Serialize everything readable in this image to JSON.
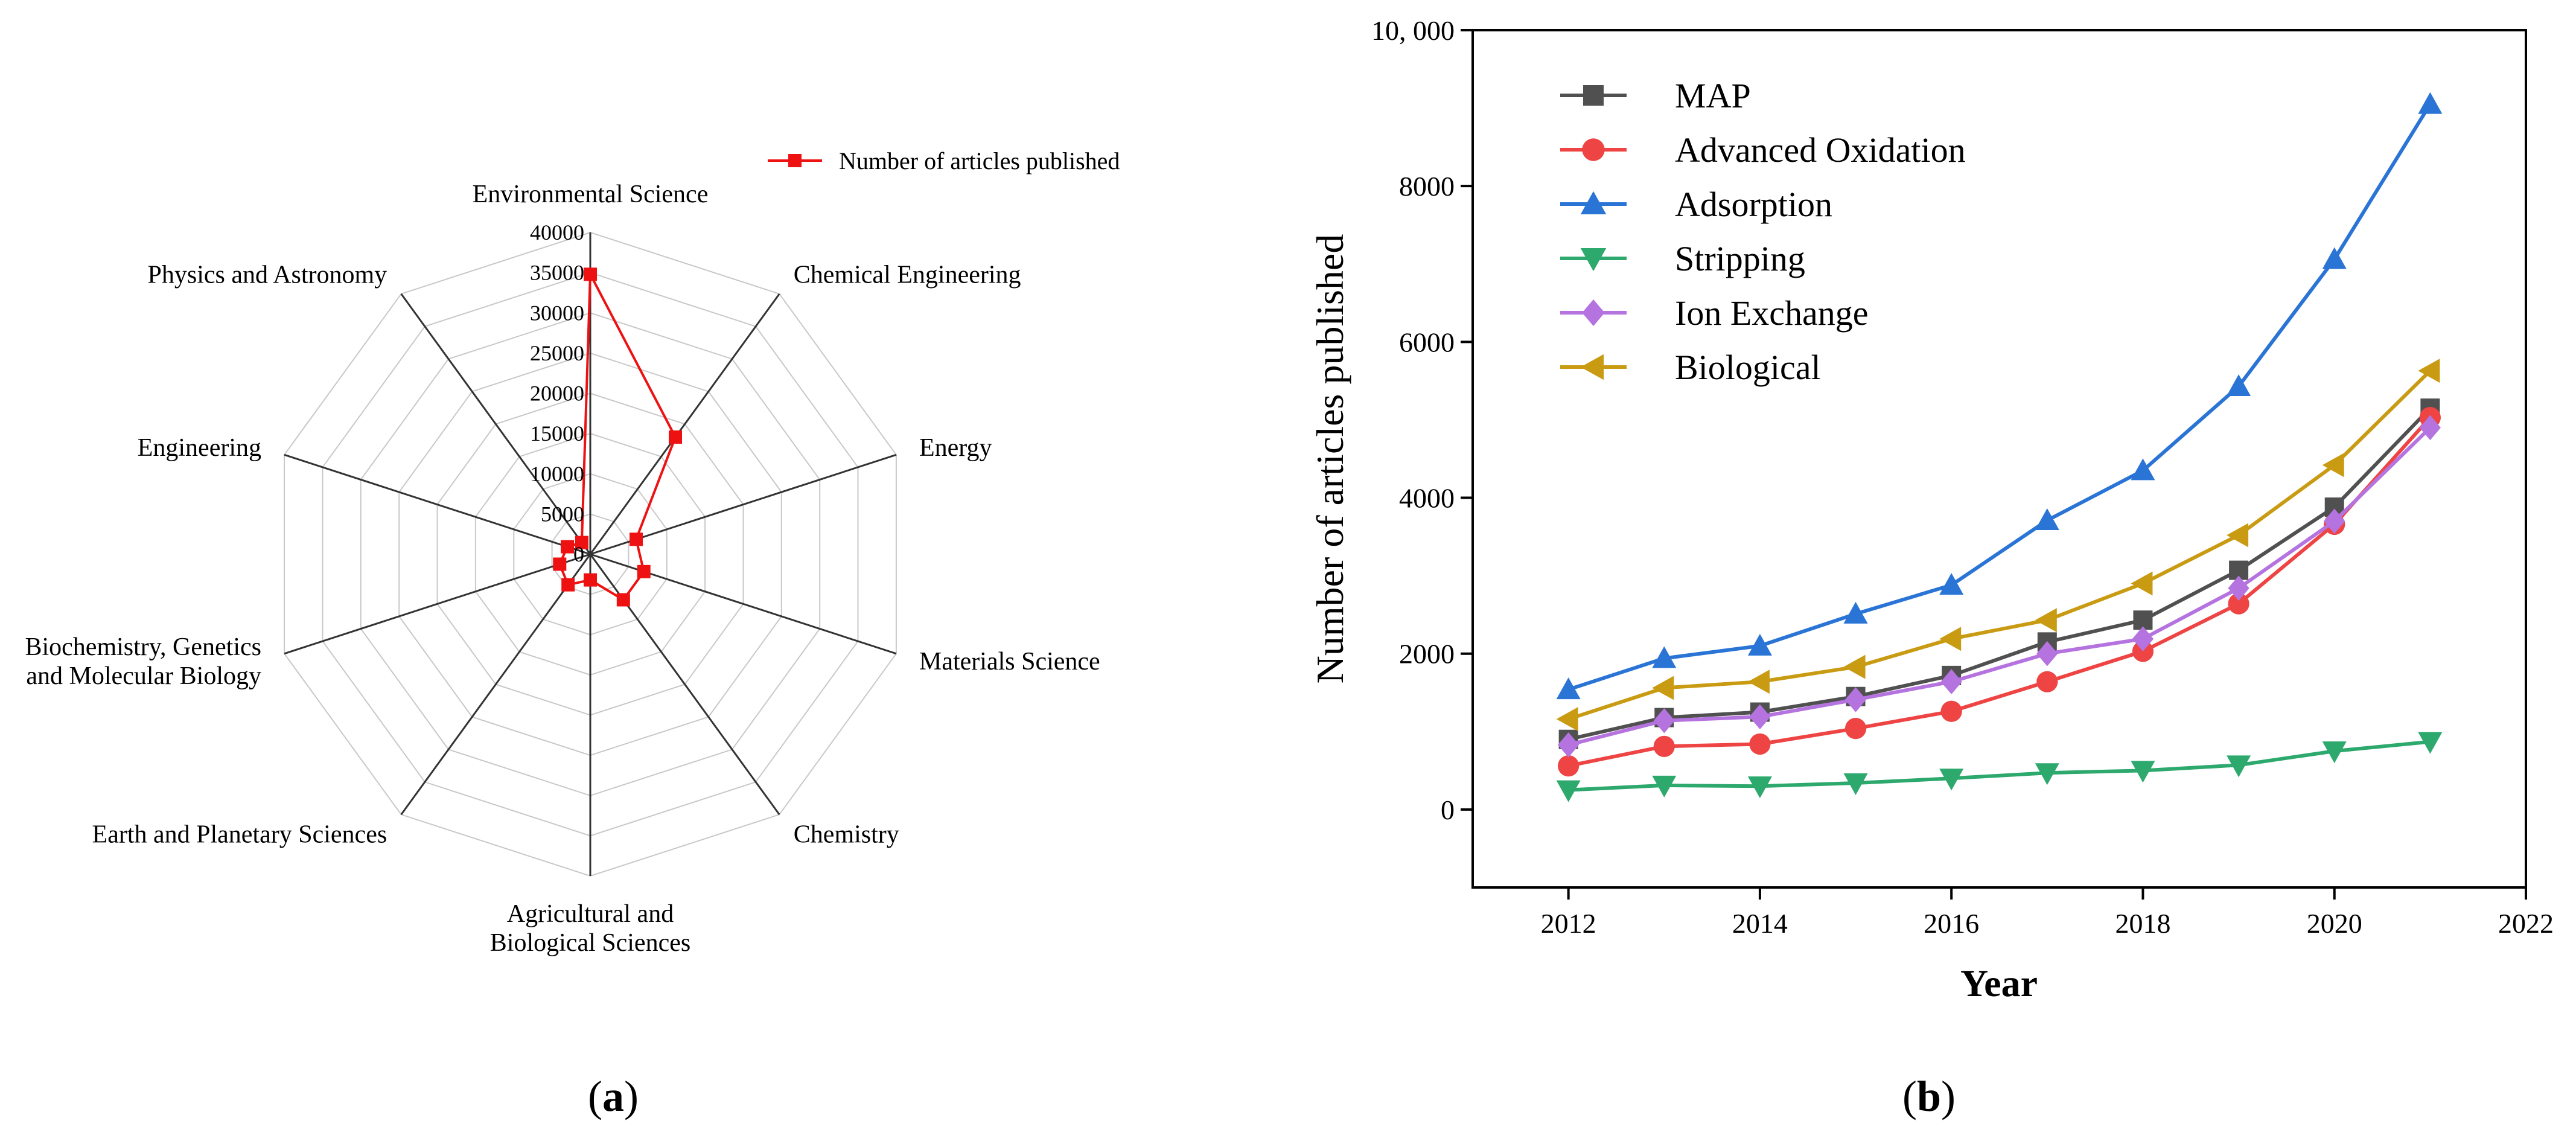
{
  "panel_a_label": "a",
  "panel_b_label": "b",
  "chart_data": [
    {
      "type": "radar",
      "title": "",
      "categories": [
        "Environmental Science",
        "Chemical Engineering",
        "Energy",
        "Materials Science",
        "Chemistry",
        "Agricultural and Biological Sciences",
        "Earth and Planetary Sciences",
        "Biochemistry, Genetics and Molecular Biology",
        "Engineering",
        "Physics and Astronomy"
      ],
      "category_lines": [
        [
          "Environmental Science"
        ],
        [
          "Chemical Engineering"
        ],
        [
          "Energy"
        ],
        [
          "Materials Science"
        ],
        [
          "Chemistry"
        ],
        [
          "Agricultural and",
          "Biological Sciences"
        ],
        [
          "Earth and Planetary Sciences"
        ],
        [
          "Biochemistry, Genetics",
          "and Molecular Biology"
        ],
        [
          "Engineering"
        ],
        [
          "Physics and Astronomy"
        ]
      ],
      "series": [
        {
          "name": "Number of articles published",
          "color": "#ee1111",
          "values": [
            34800,
            18000,
            6000,
            7000,
            7000,
            3200,
            4700,
            4000,
            3000,
            1800
          ]
        }
      ],
      "range": [
        0,
        40000
      ],
      "ticks": [
        "0",
        "5000",
        "10000",
        "15000",
        "20000",
        "25000",
        "30000",
        "35000",
        "40000"
      ],
      "legend_position": "top-right"
    },
    {
      "type": "line",
      "title": "",
      "xlabel": "Year",
      "ylabel": "Number of articles published",
      "x": [
        2012,
        2013,
        2014,
        2015,
        2016,
        2017,
        2018,
        2019,
        2020,
        2021
      ],
      "xlim": [
        2011,
        2022
      ],
      "ylim": [
        -1000,
        10000
      ],
      "xticks": [
        "2012",
        "2014",
        "2016",
        "2018",
        "2020",
        "2022"
      ],
      "yticks": [
        "0",
        "2000",
        "4000",
        "6000",
        "8000",
        "10, 000"
      ],
      "legend_position": "top-left",
      "series": [
        {
          "name": "MAP",
          "color": "#505050",
          "marker": "square",
          "values": [
            900,
            1180,
            1250,
            1450,
            1720,
            2150,
            2430,
            3070,
            3880,
            5150
          ]
        },
        {
          "name": "Advanced Oxidation",
          "color": "#ee4444",
          "marker": "circle",
          "values": [
            560,
            810,
            840,
            1040,
            1260,
            1640,
            2030,
            2640,
            3660,
            5030
          ]
        },
        {
          "name": "Adsorption",
          "color": "#2a74d6",
          "marker": "triangle-up",
          "values": [
            1540,
            1940,
            2100,
            2510,
            2880,
            3710,
            4350,
            5430,
            7060,
            9050
          ]
        },
        {
          "name": "Stripping",
          "color": "#2da96e",
          "marker": "triangle-down",
          "values": [
            250,
            310,
            300,
            340,
            400,
            470,
            500,
            570,
            750,
            870
          ]
        },
        {
          "name": "Ion Exchange",
          "color": "#b573e0",
          "marker": "diamond",
          "values": [
            830,
            1140,
            1190,
            1410,
            1640,
            2000,
            2190,
            2840,
            3700,
            4900
          ]
        },
        {
          "name": "Biological",
          "color": "#c99b12",
          "marker": "triangle-left",
          "values": [
            1160,
            1560,
            1640,
            1830,
            2190,
            2430,
            2900,
            3520,
            4420,
            5630
          ]
        }
      ]
    }
  ]
}
